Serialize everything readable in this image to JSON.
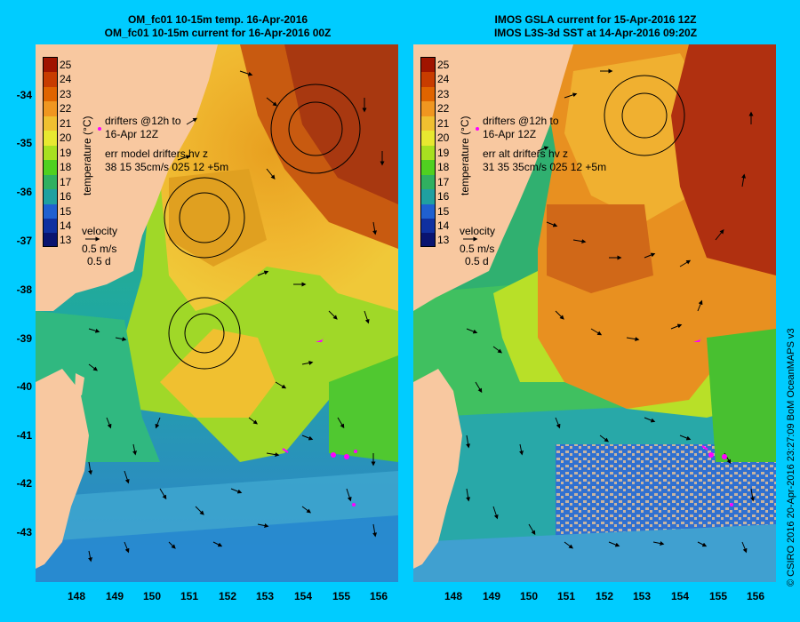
{
  "panels": [
    {
      "title_line1": "OM_fc01 10-15m temp. 16-Apr-2016",
      "title_line2": "OM_fc01 10-15m current for 16-Apr-2016 00Z",
      "drifters_line1": "drifters @12h to",
      "drifters_line2": "16-Apr 12Z",
      "err_line1": "err model drifters hv z",
      "err_line2": "38 15 35cm/s 025 12 +5m"
    },
    {
      "title_line1": "IMOS GSLA current for 15-Apr-2016 12Z",
      "title_line2": "IMOS L3S-3d SST at 14-Apr-2016 09:20Z",
      "drifters_line1": "drifters @12h to",
      "drifters_line2": "16-Apr 12Z",
      "err_line1": "err alt drifters hv z",
      "err_line2": "31 35 35cm/s 025 12 +5m"
    }
  ],
  "legend": {
    "colorbar_label": "temperature (°C)",
    "ticks": [
      "25",
      "24",
      "23",
      "22",
      "21",
      "20",
      "19",
      "18",
      "17",
      "16",
      "15",
      "14",
      "13"
    ],
    "colors": [
      "#a01400",
      "#c83c00",
      "#e06400",
      "#f09620",
      "#f0c030",
      "#e8e830",
      "#a8e020",
      "#50d020",
      "#30b060",
      "#20a0a0",
      "#2060d0",
      "#1030a0",
      "#0a1470"
    ],
    "velocity_label": "velocity",
    "velocity_scale": "0.5 m/s",
    "velocity_time": "0.5 d"
  },
  "axes": {
    "lon_ticks": [
      "148",
      "149",
      "150",
      "151",
      "152",
      "153",
      "154",
      "155",
      "156"
    ],
    "lat_ticks": [
      "-34",
      "-35",
      "-36",
      "-37",
      "-38",
      "-39",
      "-40",
      "-41",
      "-42",
      "-43"
    ]
  },
  "colors": {
    "land": "#f8c8a0",
    "background": "#00ccff",
    "drifter": "#ff00ff",
    "cloud": "#c8b4a0"
  },
  "credit": "© CSIRO 2016   20-Apr-2016 23:27:09 BoM OceanMAPS v3"
}
